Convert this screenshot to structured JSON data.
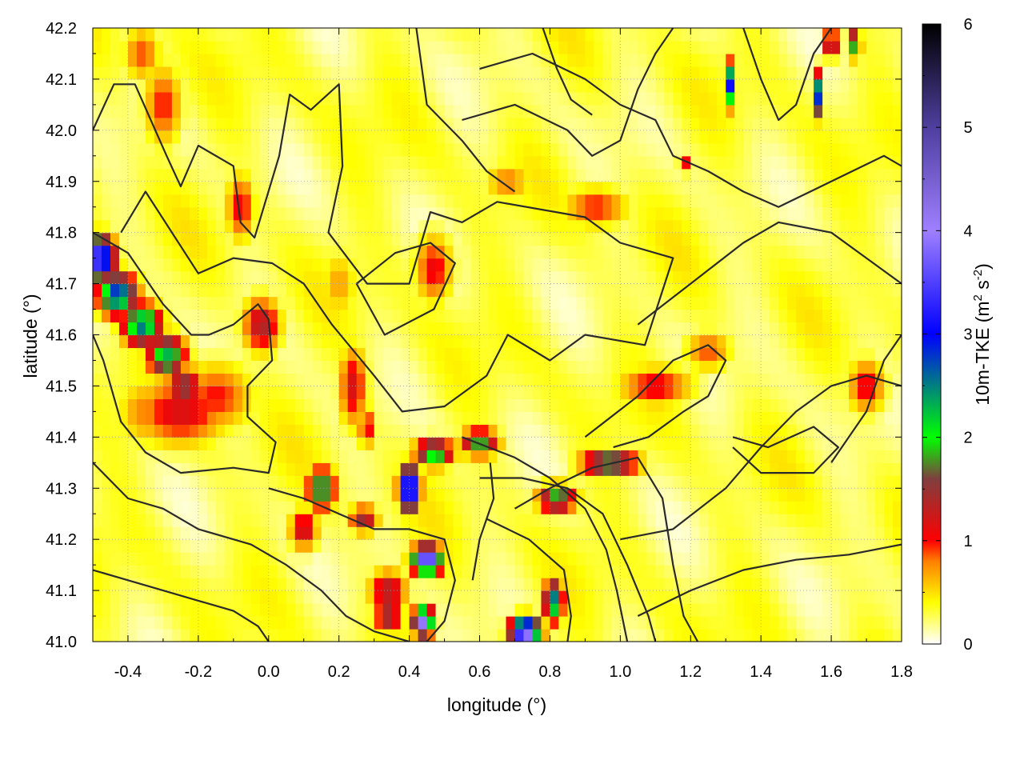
{
  "chart_data": {
    "type": "heatmap",
    "title": "",
    "xlabel": "longitude (°)",
    "ylabel": "latitude (°)",
    "colorbar_label": "10m-TKE (m² s⁻²)",
    "colorbar_label_parts": {
      "base": "10m-TKE (m",
      "sup1": "2",
      "mid": " s",
      "sup2": "-2",
      "end": ")"
    },
    "xlim": [
      -0.5,
      1.8
    ],
    "ylim": [
      41.0,
      42.2
    ],
    "clim": [
      0,
      6
    ],
    "x_ticks": [
      -0.4,
      -0.2,
      0.0,
      0.2,
      0.4,
      0.6,
      0.8,
      1.0,
      1.2,
      1.4,
      1.6,
      1.8
    ],
    "x_tick_labels": [
      "-0.4",
      "-0.2",
      "0.0",
      "0.2",
      "0.4",
      "0.6",
      "0.8",
      "1.0",
      "1.2",
      "1.4",
      "1.6",
      "1.8"
    ],
    "y_ticks": [
      41.0,
      41.1,
      41.2,
      41.3,
      41.4,
      41.5,
      41.6,
      41.7,
      41.8,
      41.9,
      42.0,
      42.1,
      42.2
    ],
    "y_tick_labels": [
      "41.0",
      "41.1",
      "41.2",
      "41.3",
      "41.4",
      "41.5",
      "41.6",
      "41.7",
      "41.8",
      "41.9",
      "42.0",
      "42.1",
      "42.2"
    ],
    "colorbar_ticks": [
      0,
      1,
      2,
      3,
      4,
      5,
      6
    ],
    "colorbar_tick_labels": [
      "0",
      "1",
      "2",
      "3",
      "4",
      "5",
      "6"
    ],
    "grid": true,
    "colormap_stops": [
      {
        "value": 0.0,
        "color": "#ffffff"
      },
      {
        "value": 0.4,
        "color": "#ffff00"
      },
      {
        "value": 0.8,
        "color": "#ff8000"
      },
      {
        "value": 1.0,
        "color": "#ff0000"
      },
      {
        "value": 1.6,
        "color": "#7f3f3f"
      },
      {
        "value": 2.0,
        "color": "#00ff00"
      },
      {
        "value": 3.0,
        "color": "#0000ff"
      },
      {
        "value": 4.0,
        "color": "#9f7fff"
      },
      {
        "value": 5.0,
        "color": "#4f3f9f"
      },
      {
        "value": 6.0,
        "color": "#000000"
      }
    ],
    "tke_features": [
      {
        "lon": -0.48,
        "lat": 41.75,
        "peak": 3.8,
        "sx": 0.03,
        "sy": 0.03
      },
      {
        "lon": -0.43,
        "lat": 41.68,
        "peak": 2.9,
        "sx": 0.04,
        "sy": 0.03
      },
      {
        "lon": -0.36,
        "lat": 41.62,
        "peak": 2.6,
        "sx": 0.04,
        "sy": 0.03
      },
      {
        "lon": -0.29,
        "lat": 41.56,
        "peak": 2.3,
        "sx": 0.04,
        "sy": 0.03
      },
      {
        "lon": -0.24,
        "lat": 41.5,
        "peak": 1.6,
        "sx": 0.04,
        "sy": 0.03
      },
      {
        "lon": -0.25,
        "lat": 41.45,
        "peak": 1.2,
        "sx": 0.1,
        "sy": 0.05
      },
      {
        "lon": -0.15,
        "lat": 41.48,
        "peak": 1.0,
        "sx": 0.08,
        "sy": 0.05
      },
      {
        "lon": -0.02,
        "lat": 41.62,
        "peak": 1.4,
        "sx": 0.04,
        "sy": 0.04
      },
      {
        "lon": -0.35,
        "lat": 41.45,
        "peak": 0.8,
        "sx": 0.06,
        "sy": 0.05
      },
      {
        "lon": -0.3,
        "lat": 42.05,
        "peak": 1.0,
        "sx": 0.04,
        "sy": 0.06
      },
      {
        "lon": -0.36,
        "lat": 42.15,
        "peak": 0.9,
        "sx": 0.04,
        "sy": 0.04
      },
      {
        "lon": -0.08,
        "lat": 41.85,
        "peak": 1.1,
        "sx": 0.03,
        "sy": 0.05
      },
      {
        "lon": 0.24,
        "lat": 41.5,
        "peak": 1.2,
        "sx": 0.03,
        "sy": 0.06
      },
      {
        "lon": 0.28,
        "lat": 41.42,
        "peak": 1.1,
        "sx": 0.02,
        "sy": 0.03
      },
      {
        "lon": 0.47,
        "lat": 41.73,
        "peak": 1.1,
        "sx": 0.04,
        "sy": 0.05
      },
      {
        "lon": 0.2,
        "lat": 41.7,
        "peak": 0.7,
        "sx": 0.04,
        "sy": 0.05
      },
      {
        "lon": 0.15,
        "lat": 41.3,
        "peak": 2.1,
        "sx": 0.03,
        "sy": 0.03
      },
      {
        "lon": 0.1,
        "lat": 41.22,
        "peak": 1.3,
        "sx": 0.03,
        "sy": 0.03
      },
      {
        "lon": 0.27,
        "lat": 41.24,
        "peak": 1.5,
        "sx": 0.03,
        "sy": 0.02
      },
      {
        "lon": 0.4,
        "lat": 41.3,
        "peak": 4.2,
        "sx": 0.02,
        "sy": 0.03
      },
      {
        "lon": 0.47,
        "lat": 41.37,
        "peak": 2.2,
        "sx": 0.04,
        "sy": 0.02
      },
      {
        "lon": 0.6,
        "lat": 41.39,
        "peak": 1.9,
        "sx": 0.04,
        "sy": 0.02
      },
      {
        "lon": 0.45,
        "lat": 41.16,
        "peak": 4.0,
        "sx": 0.03,
        "sy": 0.02
      },
      {
        "lon": 0.34,
        "lat": 41.1,
        "peak": 1.4,
        "sx": 0.04,
        "sy": 0.03
      },
      {
        "lon": 0.44,
        "lat": 41.04,
        "peak": 4.0,
        "sx": 0.02,
        "sy": 0.02
      },
      {
        "lon": 0.34,
        "lat": 41.05,
        "peak": 1.7,
        "sx": 0.03,
        "sy": 0.02
      },
      {
        "lon": 0.73,
        "lat": 41.02,
        "peak": 4.3,
        "sx": 0.03,
        "sy": 0.02
      },
      {
        "lon": 0.81,
        "lat": 41.08,
        "peak": 2.6,
        "sx": 0.02,
        "sy": 0.03
      },
      {
        "lon": 0.82,
        "lat": 41.28,
        "peak": 2.0,
        "sx": 0.04,
        "sy": 0.02
      },
      {
        "lon": 0.97,
        "lat": 41.35,
        "peak": 2.4,
        "sx": 0.06,
        "sy": 0.015
      },
      {
        "lon": 1.1,
        "lat": 41.5,
        "peak": 1.1,
        "sx": 0.08,
        "sy": 0.03
      },
      {
        "lon": 1.25,
        "lat": 41.57,
        "peak": 0.9,
        "sx": 0.05,
        "sy": 0.03
      },
      {
        "lon": 0.93,
        "lat": 41.85,
        "peak": 1.0,
        "sx": 0.07,
        "sy": 0.03
      },
      {
        "lon": 0.68,
        "lat": 41.9,
        "peak": 0.8,
        "sx": 0.05,
        "sy": 0.03
      },
      {
        "lon": 1.7,
        "lat": 41.5,
        "peak": 1.1,
        "sx": 0.04,
        "sy": 0.04
      },
      {
        "lon": 1.31,
        "lat": 42.09,
        "peak": 3.2,
        "sx": 0.01,
        "sy": 0.03
      },
      {
        "lon": 1.56,
        "lat": 42.07,
        "peak": 3.0,
        "sx": 0.01,
        "sy": 0.03
      },
      {
        "lon": 1.6,
        "lat": 42.17,
        "peak": 2.8,
        "sx": 0.01,
        "sy": 0.02
      },
      {
        "lon": 1.67,
        "lat": 42.17,
        "peak": 2.6,
        "sx": 0.01,
        "sy": 0.02
      },
      {
        "lon": 1.18,
        "lat": 41.93,
        "peak": 1.8,
        "sx": 0.01,
        "sy": 0.01
      }
    ],
    "contours": [
      [
        [
          -0.5,
          41.8
        ],
        [
          -0.4,
          41.76
        ],
        [
          -0.3,
          41.66
        ],
        [
          -0.22,
          41.6
        ],
        [
          -0.17,
          41.6
        ],
        [
          -0.1,
          41.62
        ],
        [
          -0.03,
          41.66
        ],
        [
          0.0,
          41.63
        ],
        [
          0.01,
          41.55
        ],
        [
          -0.06,
          41.5
        ],
        [
          -0.06,
          41.44
        ],
        [
          0.02,
          41.39
        ],
        [
          0.0,
          41.33
        ],
        [
          -0.1,
          41.34
        ],
        [
          -0.25,
          41.33
        ],
        [
          -0.35,
          41.37
        ],
        [
          -0.42,
          41.43
        ],
        [
          -0.47,
          41.55
        ],
        [
          -0.5,
          41.6
        ]
      ],
      [
        [
          -0.5,
          42.0
        ],
        [
          -0.44,
          42.09
        ],
        [
          -0.38,
          42.09
        ],
        [
          -0.29,
          41.95
        ],
        [
          -0.25,
          41.89
        ],
        [
          -0.2,
          41.97
        ],
        [
          -0.1,
          41.93
        ],
        [
          -0.08,
          41.82
        ],
        [
          -0.04,
          41.79
        ],
        [
          0.03,
          41.95
        ],
        [
          0.06,
          42.07
        ],
        [
          0.12,
          42.04
        ],
        [
          0.2,
          42.09
        ],
        [
          0.21,
          41.93
        ],
        [
          0.17,
          41.8
        ],
        [
          0.28,
          41.7
        ],
        [
          0.4,
          41.7
        ],
        [
          0.46,
          41.84
        ],
        [
          0.55,
          41.82
        ],
        [
          0.65,
          41.86
        ],
        [
          0.9,
          41.83
        ],
        [
          1.0,
          41.78
        ],
        [
          1.15,
          41.75
        ],
        [
          1.07,
          41.58
        ],
        [
          0.9,
          41.6
        ],
        [
          0.8,
          41.55
        ],
        [
          0.68,
          41.6
        ],
        [
          0.62,
          41.52
        ],
        [
          0.5,
          41.46
        ],
        [
          0.38,
          41.45
        ],
        [
          0.3,
          41.52
        ],
        [
          0.18,
          41.62
        ],
        [
          0.1,
          41.7
        ],
        [
          0.01,
          41.74
        ],
        [
          -0.1,
          41.75
        ],
        [
          -0.2,
          41.72
        ],
        [
          -0.35,
          41.88
        ],
        [
          -0.42,
          41.8
        ]
      ],
      [
        [
          0.25,
          41.7
        ],
        [
          0.33,
          41.6
        ],
        [
          0.47,
          41.65
        ],
        [
          0.53,
          41.74
        ],
        [
          0.46,
          41.78
        ],
        [
          0.36,
          41.76
        ],
        [
          0.25,
          41.7
        ]
      ],
      [
        [
          -0.5,
          41.35
        ],
        [
          -0.4,
          41.28
        ],
        [
          -0.3,
          41.26
        ],
        [
          -0.2,
          41.22
        ],
        [
          -0.05,
          41.19
        ],
        [
          0.05,
          41.15
        ],
        [
          0.15,
          41.1
        ],
        [
          0.22,
          41.05
        ],
        [
          0.3,
          41.02
        ],
        [
          0.4,
          41.0
        ]
      ],
      [
        [
          -0.5,
          41.14
        ],
        [
          -0.4,
          41.12
        ],
        [
          -0.3,
          41.1
        ],
        [
          -0.2,
          41.08
        ],
        [
          -0.1,
          41.06
        ],
        [
          -0.03,
          41.03
        ],
        [
          0.0,
          41.0
        ]
      ],
      [
        [
          0.55,
          41.4
        ],
        [
          0.7,
          41.36
        ],
        [
          0.8,
          41.32
        ],
        [
          0.9,
          41.26
        ],
        [
          0.96,
          41.18
        ],
        [
          0.99,
          41.1
        ],
        [
          1.02,
          41.0
        ]
      ],
      [
        [
          0.6,
          41.32
        ],
        [
          0.72,
          41.32
        ],
        [
          0.85,
          41.3
        ],
        [
          0.95,
          41.25
        ],
        [
          1.02,
          41.15
        ],
        [
          1.08,
          41.05
        ],
        [
          1.1,
          41.0
        ]
      ],
      [
        [
          0.7,
          41.26
        ],
        [
          0.8,
          41.3
        ],
        [
          0.92,
          41.34
        ],
        [
          1.05,
          41.36
        ],
        [
          1.12,
          41.28
        ],
        [
          1.15,
          41.15
        ],
        [
          1.18,
          41.05
        ],
        [
          1.22,
          41.0
        ]
      ],
      [
        [
          0.62,
          41.24
        ],
        [
          0.74,
          41.2
        ],
        [
          0.84,
          41.14
        ],
        [
          0.86,
          41.05
        ],
        [
          0.85,
          41.0
        ]
      ],
      [
        [
          0.58,
          41.12
        ],
        [
          0.6,
          41.2
        ],
        [
          0.64,
          41.28
        ],
        [
          0.63,
          41.35
        ]
      ],
      [
        [
          0.0,
          41.3
        ],
        [
          0.1,
          41.28
        ],
        [
          0.2,
          41.25
        ],
        [
          0.3,
          41.22
        ],
        [
          0.4,
          41.22
        ],
        [
          0.5,
          41.2
        ],
        [
          0.53,
          41.12
        ],
        [
          0.5,
          41.04
        ],
        [
          0.45,
          41.0
        ]
      ],
      [
        [
          0.9,
          41.4
        ],
        [
          1.05,
          41.48
        ],
        [
          1.15,
          41.55
        ],
        [
          1.25,
          41.58
        ],
        [
          1.3,
          41.55
        ],
        [
          1.25,
          41.48
        ],
        [
          1.18,
          41.45
        ],
        [
          1.08,
          41.4
        ],
        [
          0.98,
          41.38
        ]
      ],
      [
        [
          1.0,
          41.2
        ],
        [
          1.15,
          41.22
        ],
        [
          1.3,
          41.3
        ],
        [
          1.4,
          41.38
        ],
        [
          1.5,
          41.45
        ],
        [
          1.6,
          41.5
        ],
        [
          1.7,
          41.52
        ],
        [
          1.8,
          41.5
        ]
      ],
      [
        [
          1.05,
          41.05
        ],
        [
          1.2,
          41.1
        ],
        [
          1.35,
          41.14
        ],
        [
          1.5,
          41.16
        ],
        [
          1.65,
          41.17
        ],
        [
          1.8,
          41.19
        ]
      ],
      [
        [
          1.32,
          41.4
        ],
        [
          1.42,
          41.38
        ],
        [
          1.55,
          41.42
        ],
        [
          1.62,
          41.38
        ],
        [
          1.55,
          41.33
        ],
        [
          1.4,
          41.33
        ],
        [
          1.32,
          41.38
        ]
      ],
      [
        [
          1.05,
          41.62
        ],
        [
          1.2,
          41.7
        ],
        [
          1.35,
          41.78
        ],
        [
          1.45,
          41.82
        ],
        [
          1.6,
          41.8
        ],
        [
          1.7,
          41.75
        ],
        [
          1.8,
          41.7
        ]
      ],
      [
        [
          0.6,
          42.12
        ],
        [
          0.75,
          42.15
        ],
        [
          0.9,
          42.1
        ],
        [
          1.0,
          42.05
        ],
        [
          1.1,
          42.02
        ],
        [
          1.15,
          41.95
        ],
        [
          1.25,
          41.92
        ],
        [
          1.35,
          41.88
        ],
        [
          1.45,
          41.85
        ],
        [
          1.6,
          41.9
        ],
        [
          1.75,
          41.95
        ],
        [
          1.8,
          41.93
        ]
      ],
      [
        [
          0.55,
          42.02
        ],
        [
          0.7,
          42.05
        ],
        [
          0.85,
          42.0
        ],
        [
          0.92,
          41.95
        ],
        [
          1.0,
          41.98
        ],
        [
          1.05,
          42.08
        ],
        [
          1.1,
          42.15
        ],
        [
          1.15,
          42.2
        ]
      ],
      [
        [
          0.78,
          42.2
        ],
        [
          0.82,
          42.12
        ],
        [
          0.86,
          42.06
        ],
        [
          0.92,
          42.03
        ]
      ],
      [
        [
          1.35,
          42.2
        ],
        [
          1.4,
          42.1
        ],
        [
          1.45,
          42.02
        ],
        [
          1.5,
          42.05
        ],
        [
          1.55,
          42.15
        ],
        [
          1.6,
          42.2
        ]
      ],
      [
        [
          1.6,
          41.35
        ],
        [
          1.7,
          41.45
        ],
        [
          1.75,
          41.55
        ],
        [
          1.8,
          41.6
        ]
      ],
      [
        [
          0.42,
          42.2
        ],
        [
          0.45,
          42.05
        ],
        [
          0.55,
          41.98
        ],
        [
          0.62,
          41.92
        ],
        [
          0.7,
          41.88
        ]
      ]
    ]
  }
}
